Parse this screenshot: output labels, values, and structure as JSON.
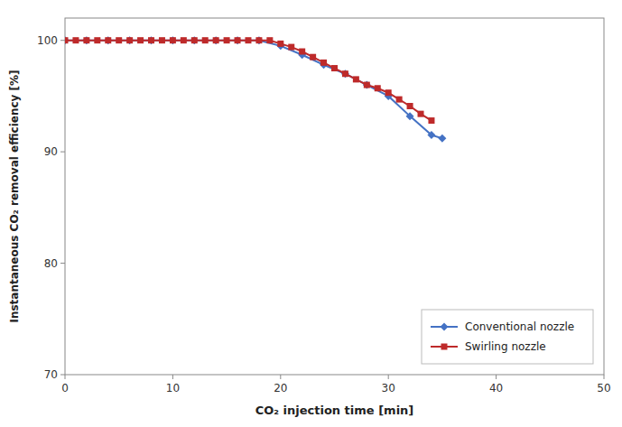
{
  "chart_data": {
    "type": "line",
    "x_label": "CO₂ injection time [min]",
    "y_label": "Instantaneous CO₂ removal efficiency [%]",
    "series": [
      {
        "name": "Conventional nozzle",
        "color": "#4472C4",
        "marker": "diamond",
        "line_style": "solid",
        "x": [
          0,
          2,
          4,
          6,
          8,
          10,
          12,
          14,
          16,
          18,
          20,
          22,
          24,
          26,
          28,
          30,
          32,
          34,
          35
        ],
        "values": [
          100,
          100,
          100,
          100,
          100,
          100,
          100,
          100,
          100,
          100,
          99.5,
          98.7,
          97.8,
          97.0,
          96.0,
          95.0,
          93.2,
          91.5,
          91.2
        ]
      },
      {
        "name": "Swirling nozzle",
        "color": "#BE2A2A",
        "marker": "square",
        "line_style": "solid",
        "x": [
          0,
          1,
          2,
          3,
          4,
          5,
          6,
          7,
          8,
          9,
          10,
          11,
          12,
          13,
          14,
          15,
          16,
          17,
          18,
          19,
          20,
          21,
          22,
          23,
          24,
          25,
          26,
          27,
          28,
          29,
          30,
          31,
          32,
          33,
          34
        ],
        "values": [
          100,
          100,
          100,
          100,
          100,
          100,
          100,
          100,
          100,
          100,
          100,
          100,
          100,
          100,
          100,
          100,
          100,
          100,
          100,
          100,
          99.7,
          99.4,
          99.0,
          98.5,
          98.0,
          97.5,
          97.0,
          96.5,
          96.0,
          95.7,
          95.3,
          94.7,
          94.1,
          93.4,
          92.8
        ]
      }
    ],
    "xlim": [
      0,
      50
    ],
    "ylim": [
      70,
      102
    ],
    "xticks": [
      0,
      10,
      20,
      30,
      40,
      50
    ],
    "yticks": [
      70,
      80,
      90,
      100
    ],
    "grid": false,
    "legend": "lower right"
  }
}
